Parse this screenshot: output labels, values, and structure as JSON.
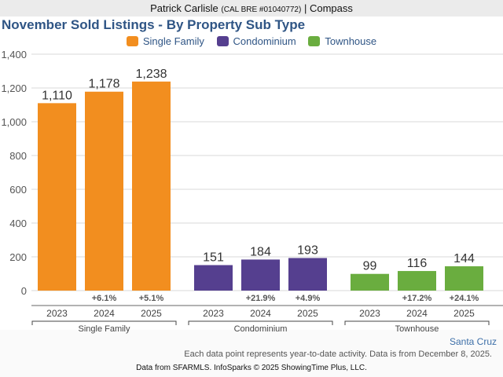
{
  "header": {
    "agent_name": "Patrick Carlisle",
    "license": "(CAL BRE #01040772)",
    "separator": "|",
    "brokerage": "Compass"
  },
  "legend_items": [
    {
      "label": "Single Family",
      "color": "#f28e1f"
    },
    {
      "label": "Condominium",
      "color": "#553f8f"
    },
    {
      "label": "Townhouse",
      "color": "#6aad3f"
    }
  ],
  "footer": {
    "region": "Santa Cruz",
    "note": "Each data point represents year-to-date activity. Data is from December 8, 2025.",
    "source": "Data from SFARMLS. InfoSparks © 2025 ShowingTime Plus, LLC."
  },
  "chart_data": {
    "type": "bar",
    "title": "November Sold Listings - By Property Sub Type",
    "xlabel": "",
    "ylabel": "",
    "ylim": [
      0,
      1400
    ],
    "yticks": [
      0,
      200,
      400,
      600,
      800,
      1000,
      1200,
      1400
    ],
    "ytick_labels": [
      "0",
      "200",
      "400",
      "600",
      "800",
      "1,000",
      "1,200",
      "1,400"
    ],
    "grid": true,
    "legend_position": "top-center",
    "groups": [
      {
        "name": "Single Family",
        "color": "#f28e1f",
        "categories": [
          "2023",
          "2024",
          "2025"
        ],
        "values": [
          1110,
          1178,
          1238
        ],
        "value_labels": [
          "1,110",
          "1,178",
          "1,238"
        ],
        "changes": [
          "",
          "+6.1%",
          "+5.1%"
        ]
      },
      {
        "name": "Condominium",
        "color": "#553f8f",
        "categories": [
          "2023",
          "2024",
          "2025"
        ],
        "values": [
          151,
          184,
          193
        ],
        "value_labels": [
          "151",
          "184",
          "193"
        ],
        "changes": [
          "",
          "+21.9%",
          "+4.9%"
        ]
      },
      {
        "name": "Townhouse",
        "color": "#6aad3f",
        "categories": [
          "2023",
          "2024",
          "2025"
        ],
        "values": [
          99,
          116,
          144
        ],
        "value_labels": [
          "99",
          "116",
          "144"
        ],
        "changes": [
          "",
          "+17.2%",
          "+24.1%"
        ]
      }
    ]
  }
}
